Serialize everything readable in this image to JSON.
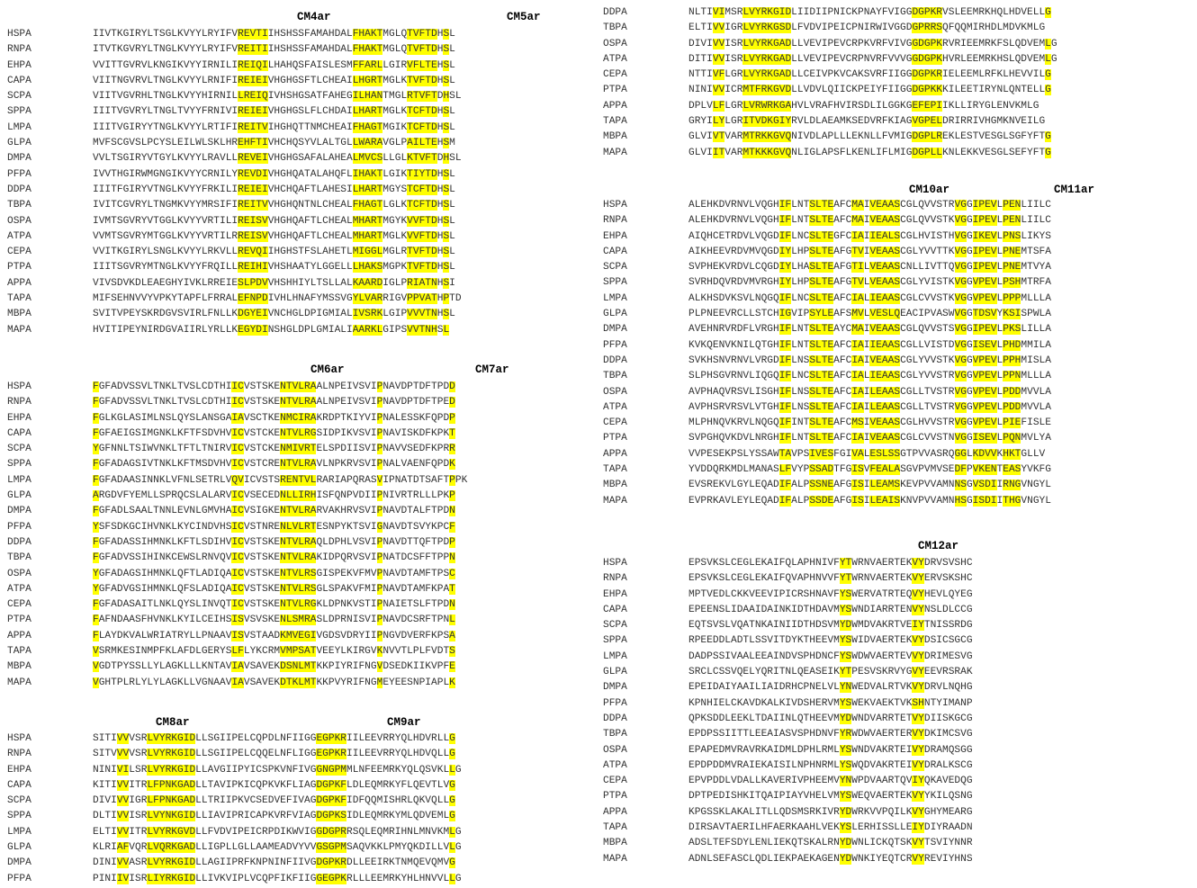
{
  "species": [
    "HSPA",
    "RNPA",
    "EHPA",
    "CAPA",
    "SCPA",
    "SPPA",
    "LMPA",
    "GLPA",
    "DMPA",
    "PFPA",
    "DDPA",
    "TBPA",
    "OSPA",
    "ATPA",
    "CEPA",
    "PTPA",
    "APPA",
    "TAPA",
    "MBPA",
    "MAPA"
  ],
  "blocks": [
    {
      "id": "b1",
      "labels": [
        "CM4ar",
        "CM5ar"
      ],
      "names": [
        "HSPA",
        "RNPA",
        "EHPA",
        "CAPA",
        "SCPA",
        "SPPA",
        "LMPA",
        "GLPA",
        "DMPA",
        "PFPA",
        "DDPA",
        "TBPA",
        "OSPA",
        "ATPA",
        "CEPA",
        "PTPA",
        "APPA",
        "TAPA",
        "MBPA",
        "MAPA"
      ],
      "seqs": [
        "IIVTKGIRYLTSGLKVYYLRYIFVREVTIIHSHSSFAMAHDALFHAKTMGLQTVFTDHSL",
        "ITVTKGVRYLTNGLKVYYLRYIFVREITIIHSHSSFAMAHDALFHAKTMGLQTVFTDHSL",
        "VVITTGVRVLKNGIKVYYIRNILIREIQILHAHQSFAISLESMFFARLLGIRVFLTEHSL",
        "VIITNGVRVLTNGLKVYYLRNIFIREIEIVHGHGSFTLCHEAILHGRTMGLKTVFTDHSL",
        "VIITVGVRHLTNGLKVYYHIRNILLREIQIVHSHGSATFAHEGILHANTMGLRTVFTDHSL",
        "IIITVGVRYLTNGLTVYYFRNIVIREIEIVHGHGSLFLCHDAILHARTMGLKTCFTDHSL",
        "IIITVGIRYYTNGLKVYYLRTIFIREITVIHGHQTTNMCHEAIFHAGTMGIKTCFTDHSL",
        "MVFSCGVSLPCYSLEILWLSKLHREHFTIVHCHQSYVLALTGLLWARAVGLPAILTEHSM",
        "VVLTSGIRYVTGYLKVYYLRAVLLREVEIVHGHGSAFALAHEALMVCSLLGLKTVFTDHSL",
        "IVVTHGIRWMGNGIKVYYCRNILYREVDIVHGHQATALAHQFLIHAKTLGIKTIYTDHSL",
        "IIITFGIRYVTNGLKVYYFRKILIREIEIVHCHQAFTLAHESILHARTMGYSTCFTDHSL",
        "IVITCGVRYLTNGMKVYYMRSIFIREITVVHGHQNTNLCHEALFHAGTLGLKTCFTDHSL",
        "IVMTSGVRYVTGGLKVYYVRTILIREISVVHGHQAFTLCHEALMHARTMGYKVVFTDHSL",
        "VVMTSGVRYMTGGLKVYYVRTILRREISVVHGHQAFTLCHEALMHARTMGLKVVFTDHSL",
        "VVITKGIRYLSNGLKVYYLRKVLLREVQIIHGHSTFSLAHETLMIGGLMGLRTVFTDHSL",
        "IIITSGVRYMTNGLKVYYFRQILLREIHIVHSHAATYLGGELLLHAKSMGPKTVFTDHSL",
        "VIVSDVKDLEAEGHYIVKLRREIESLPDVVHSHHIYLTSLLALKAARDIGLPRIATNHSI",
        "MIFSEHNVVYVPKYTAPFLFRRALEFNPDIVHLHNAFYMSSVGYLVARRIGVPPVATHPTD",
        "SVITVPEYSKRDGVSVIRLFNLLKDGYEIVNCHGLDPIGMIALIVSRKLGIPVVVTNHSL",
        "HVITIPEYNIRDGVAIIRLYRLLKEGYDINSHGLDPLGMIALIAARKLGIPSVVTNHSL"
      ]
    },
    {
      "id": "b2",
      "labels": [
        "CM6ar",
        "CM7ar"
      ],
      "names": [
        "HSPA",
        "RNPA",
        "EHPA",
        "CAPA",
        "SCPA",
        "SPPA",
        "LMPA",
        "GLPA",
        "DMPA",
        "PFPA",
        "DDPA",
        "TBPA",
        "OSPA",
        "ATPA",
        "CEPA",
        "PTPA",
        "APPA",
        "TAPA",
        "MBPA",
        "MAPA"
      ],
      "seqs": [
        "FGFADVSSVLTNKLTVSLCDTHIICVSTSKENTVLRAALNPEIVSVIPNAVDPTDFTPDD",
        "FGFADVSSVLTNKLTVSLCDTHIICVSTSKENTVLRAALNPEIVSVIPNAVDPTDFTPED",
        "FGLKGLASIMLNSLQYSLANSGAIAVSCTKENMCIRAKRDPTKIYVIPNALESSKFQPDP",
        "FGFAEIGSIMGNKLKFTFSDVHVICVSTCKENTVLRGSIDPIKVSVIPNAVISKDFKPKT",
        "YGFNNLTSIWVNKLTFTLTNIRVICVSTCKENMIVRTELSPDIISVIPNAVVSEDFKPRR",
        "FGFADAGSIVTNKLKFTMSDVHVICVSTCRENTVLRAVLNPKRVSVIPNALVAENFQPDK",
        "FGFADAASINNKLVFNLSETRLVQVICVSTSRENTVLRARIAPQRASVIPNATDTSAFTPPK",
        "ARGDVFYEMLLSPRQCSLALARVICVSECEDNLLIRHISFQNPVDIIPNIVRTRLLLPKP",
        "FGFADLSAALTNNLEVNLGMVHAICVSIGKENTVLRARVAKHRVSVIPNAVDTALFTPDN",
        "YSFSDKGCIHVNKLKYCINDVHSICVSTNRENLVLRTESNPYKTSVIGNAVDTSVYKPCF",
        "FGFADASSIHMNKLKFTLSDIHVICVSTSKENTVLRAQLDPHLVSVIPNAVDTTQFTPDP",
        "FGFADVSSIHINKCEWSLRNVQVICVSTSKENTVLRAKIDPQRVSVIPNATDCSFFTPPN",
        "YGFADAGSIHMNKLQFTLADIQAICVSTSKENTVLRSGISPEKVFMVPNAVDTAMFTPSC",
        "YGFADVGSIHMNKLQFSLADIQAICVSTSKENTVLRSGLSPAKVFMIPNAVDTAMFKPAT",
        "FGFADASAITLNKLQYSLINVQTICVSTSKENTVLRGKLDPNKVSTIPNAIETSLFTPDN",
        "FAFNDAASFHVNKLKYILCEIHSISVSVSKENLSMRASLDPRNISVIPNAVDCSRFTPNL",
        "FLAYDKVALWRIATRYLLPNAAVISVSTAADKMVEGIVGDSVDRYIIPNGVDVERFKPSA",
        "VSRMKESINMPFKLAFDLGERYSLFLYKCRMVMPSATVEEYLKIRGVKNVVTLPLFVDTS",
        "VGDTPYSSLLYLAGKLLLKNTAVIAVSAVEKDSNLMTKKPIYRIFNGVDSEDKIIKVPFE",
        "VGHTPLRLYLYLAGKLLVGNAAVIAVSAVEKDTKLMTKKPVYRIFNGMEYEESNPIAPLK"
      ]
    },
    {
      "id": "b3",
      "labels": [
        "CM8ar",
        "CM9ar"
      ],
      "names": [
        "HSPA",
        "RNPA",
        "EHPA",
        "CAPA",
        "SCPA",
        "SPPA",
        "LMPA",
        "GLPA",
        "DMPA",
        "PFPA"
      ],
      "seqs": [
        "SITIVVVSRLVYRKGIDLLSGIIPELCQPDLNFIIGGEGPKRIILEEVRRYQLHDVRLLG",
        "SITVVVVSRLVYRKGIDLLSGIIPELCQQELNFLIGGEGPKRIILEEVRRYQLHDVQLLG",
        "NINIVILSRLVYRKGIDLLAVGIIPYICSPKVNFIVGGNGPMMLNFEEMRKYQLQSVKLLG",
        "KITIVVITRLFPNKGADLLTAVIPKICQPKVKFLIAGDGPKFLDLEQMRKYFLQEVTLVG",
        "DIVIVVIGRLFPNKGADLLTRIIPKVCSEDVEFIVAGDGPKFIDFQQMISHRLQKVQLLG",
        "DLTIVVISRLVYNKGIDLLIAVIPRICAPKVRFVIAGDGPKSIDLEQMRKYMLQDVEMLG",
        "ELTIVVITRLVYRKGVDLLFVDVIPEICRPDIKWVIGGDGPRRSQLEQMRIHNLMNVKMLG",
        "KLRIAFVQRLVQRKGADLLIGPLLGLLAAMEADVYVVGSGPMSAQVKKLPMYQKDILLVLG",
        "DINIVVASRLVYRKGIDLLAGIIPRFKNPNINFIIVGDGPKRDLLEEIRKTNMQEVQMVG",
        "PINIIVISRLIYRKGIDLLIVKVIPLVCQPFIKFIIGGEGPKRLLLEEMRKYHLHNVVLLG"
      ]
    },
    {
      "id": "b4",
      "labels": [],
      "names": [
        "DDPA",
        "TBPA",
        "OSPA",
        "ATPA",
        "CEPA",
        "PTPA",
        "APPA",
        "TAPA",
        "MBPA",
        "MAPA"
      ],
      "seqs": [
        "NLTIVIMSRLVYRKGIDLIIDIIPNICKPNAYFVIGGDGPKRVSLEEMRKHQLHDVELLG",
        "ELTIVVIGRLVYRKGSDLFVDVIPEICPNIRWIVGGDGPRRSQFQQMIRHDLMDVKMLG",
        "DIVIVVISRLVYRKGADLLVEVIPEVCRPKVRFVIVGGDGPKRVRIEEMRKFSLQDVEMLG",
        "DITIVVISRLVYRKGADLLVEVIPEVCRPNVRFVVVGGDGPKHVRLEEMRKHSLQDVEMLG",
        "NTTIVFLGRLVYRKGADLLCEIVPKVCAKSVRFIIGGDGPKRIELEEMLRFKLHEVVILG",
        "NINIVVICRMTFRKGVDLLVDVLQIICKPEIYFIIGGDGPKKKILEETIRYNLQNTELLG",
        "DPLVLFLGRLVRWRKGAHVLVRAFHVIRSDLILGGKGEFEPIIKLLIRYGLENVKMLG",
        "GRYILYLGRITVDKGIYRVLDLAEAMKSEDVRFKIAGVGPELDRIRRIVHGMKNVEILG",
        "GLVIVTVARMTRKKGVQNIVDLAPLLLEKNLLFVMIGDGPLREKLESTVESGLSGFYFTG",
        "GLVIITVARMTKKKGVQNLIGLAPSFLKENLIFLMIGDGPLLKNLEKKVESGLSEFYFTG"
      ]
    },
    {
      "id": "b5",
      "labels": [
        "CM10ar",
        "CM11ar"
      ],
      "names": [
        "HSPA",
        "RNPA",
        "EHPA",
        "CAPA",
        "SCPA",
        "SPPA",
        "LMPA",
        "GLPA",
        "DMPA",
        "PFPA",
        "DDPA",
        "TBPA",
        "OSPA",
        "ATPA",
        "CEPA",
        "PTPA",
        "APPA",
        "TAPA",
        "MBPA",
        "MAPA"
      ],
      "seqs": [
        "ALEHKDVRNVLVQGHIFLNTSLTEAFCMAIVEAASCGLQVVSTRVGGIPEVLPENLIILC",
        "ALEHKDVRNVLVQGHIFLNTSLTEAFCMAIVEAASCGLQVVSTKVGGIPEVLPENLIILC",
        "AIQHCETRDVLVQGDIFLNCSLTEGFCIAIIEALSCGLHVISTHVGGIKEVLPNSLIKYS",
        "AIKHEEVRDVMVQGDIYLHPSLTEAFGTVIVEAASCGLYVVTTKVGGIPEVLPNEMTSFA",
        "SVPHEKVRDVLCQGDIYLHASLTEAFGTILVEAASCNLLIVTTQVGGIPEVLPNEMTVYA",
        "SVRHDQVRDVMVRGHIYLHPSLTEAFGTVLVEAASCGLYVISTKVGGVPEVLPSHMTRFA",
        "ALKHSDVKSVLNQGQIFLNCSLTEAFCIALIEAASCGLCVVSTKVGGVPEVLPPPMLLLA",
        "PLPNEEVRCLLSTCHIGVIPSYLEAFSMVLVESLQEACIPVASWVGGTDSVYKSISPWLA",
        "AVEHNRVRDFLVRGHIFLNTSLTEAYCMAIVEAASCGLQVVSTSVGGIPEVLPKSLILLA",
        "KVKQENVKNILQTGHIFLNTSLTEAFCIAIIEAASCGLLVISTDVGGISEVLPHDMMILA",
        "SVKHSNVRNVLVRGDIFLNSSLTEAFCIAIVEAASCGLYVVSTKVGGVPEVLPPHMISLA",
        "SLPHSGVRNVLIQGQIFLNCSLTEAFCIALIEAASCGLYVVSTRVGGVPEVLPPNMLLLA",
        "AVPHAQVRSVLISGHIFLNSSLTEAFCIAILEAASCGLLTVSTRVGGVPEVLPDDMVVLA",
        "AVPHSRVRSVLVTGHIFLNSSLTEAFCIAILEAASCGLLTVSTRVGGVPEVLPDDMVVLA",
        "MLPHNQVKRVLNQGQIFINTSLTEAFCMSIVEAASCGLHVVSTRVGGVPEVLPIEFISLE",
        "SVPGHQVKDVLNRGHIFLNTSLTEAFCIAIVEAASCGLCVVSTNVGGISEVLPQNMVLYA",
        "VVPESEKPSLYSSAWTAVPSIVESFGIVALESLSSGTPVVASRQGGLKDVVKHKTGLLV",
        "YVDDQRKMDLMANASLFVYPSSADTFGISVFEALASGVPVMVSEDFPVKENTEASYVKFG",
        "EVSREKVLGYLEQADIFALPSSNEAFGISILEAMSKEVPVVAMNNSGVSDIIRNGVNGYL",
        "EVPRKAVLEYLEQADIFALPSSDEAFGISILEAISKNVPVVAMNHSGISDIITHGVNGYL"
      ]
    },
    {
      "id": "b6",
      "labels": [
        "CM12ar"
      ],
      "names": [
        "HSPA",
        "RNPA",
        "EHPA",
        "CAPA",
        "SCPA",
        "SPPA",
        "LMPA",
        "GLPA",
        "DMPA",
        "PFPA",
        "DDPA",
        "TBPA",
        "OSPA",
        "ATPA",
        "CEPA",
        "PTPA",
        "APPA",
        "TAPA",
        "MBPA",
        "MAPA"
      ],
      "seqs": [
        "EPSVKSLCEGLEKAIFQLAPHNIVFYTWRNVAERTEKVYDRVSVSHC",
        "EPSVKSLCEGLEKAIFQVAPHNVVFYTWRNVAERTEKVYERVSKSHC",
        "MPTVEDLCKKVEEVIPICRSHNAVFYSWERVATRTEQVYHEVLQYEG",
        "EPEENSLIDAAIDAINKIDTHDAVMYSWNDIARRTENVYNSLDLCCG",
        "EQTSVSLVQATNKAINIIDTHDSVMYDWMDVAKRTVEIYTNISSRDG",
        "RPEEDDLADTLSSVITDYKTHEEVMYSWIDVAERTEKVYDSICSGCG",
        "DADPSSIVAALEEAINDVSPHDNCFYSWDWVAERTEVVYDRIMESVG",
        "SRCLCSSVQELYQRITNLQEASEIKYTPESVSKRVYGVYEEVRSRAK",
        "EPEIDAIYAAILIAIDRHCPNELVLYNWEDVALRTVKVYDRVLNQHG",
        "KPNHIELCKAVDKALKIVDSHERVMYSWEKVAEKTVKSHNTYIMANP",
        "QPKSDDLEEKLTDAIINLQTHEEVMYDWNDVARRTETVYDIISKGCG",
        "EPDPSSIITTLEEAIASVSPHDNVFYRWDWVAERTERVYDKIMCSVG",
        "EPAPEDMVRAVRKAIDMLDPHLRMLYSWNDVAKRTEIVYDRAMQSGG",
        "EPDPDDMVRAIEKAISILNPHNRMLYSWQDVAKRTEIVYDRALKSCG",
        "EPVPDDLVDALLKAVERIVPHEEMVYNWPDVAARTQVIYQKAVEDQG",
        "DPTPEDISHKITQAIPIAYVHELVMYSWEQVAERTEKVYYKILQSNG",
        "KPGSSKLAKALITLLQDSMSRKIVRYDWRKVVPQILKVYGHYMEARG",
        "DIRSAVTAERILHFAERKAAHLVEKYSLERHISSLLEIYDIYRAADN",
        "ADSLTEFSDYLENLIEKQTSKALRNYDWNLICKQTSKVYTSVIYNNR",
        "ADNLSEFASCLQDLIEKPAEKAGENYDWNKIYEQTCRVYREVIYHNS"
      ]
    }
  ],
  "highlight_colors": {
    "conserved": "#ffff00",
    "similar": "#33e3ef",
    "other": "#22dd22"
  }
}
